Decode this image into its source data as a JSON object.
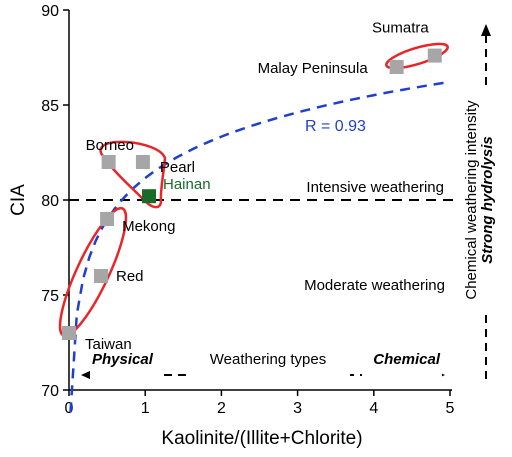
{
  "chart_data": {
    "type": "scatter",
    "title": "",
    "xlabel": "Kaolinite/(Illite+Chlorite)",
    "ylabel": "CIA",
    "xlim": [
      0,
      5
    ],
    "ylim": [
      70,
      90
    ],
    "xticks": [
      "0",
      "1",
      "2",
      "3",
      "4",
      "5"
    ],
    "yticks": [
      "70",
      "75",
      "80",
      "85",
      "90"
    ],
    "grid": false,
    "points": [
      {
        "label": "Taiwan",
        "x": 0.0,
        "y": 73.0,
        "color": "#a6a6a6"
      },
      {
        "label": "Red",
        "x": 0.42,
        "y": 76.0,
        "color": "#a6a6a6"
      },
      {
        "label": "Mekong",
        "x": 0.5,
        "y": 79.0,
        "color": "#a6a6a6"
      },
      {
        "label": "Borneo",
        "x": 0.52,
        "y": 82.0,
        "color": "#a6a6a6"
      },
      {
        "label": "Pearl",
        "x": 0.97,
        "y": 82.0,
        "color": "#a6a6a6"
      },
      {
        "label": "Hainan",
        "x": 1.05,
        "y": 80.2,
        "color": "#1a6b2a"
      },
      {
        "label": "Malay Peninsula",
        "x": 4.3,
        "y": 87.0,
        "color": "#a6a6a6"
      },
      {
        "label": "Sumatra",
        "x": 4.8,
        "y": 87.6,
        "color": "#a6a6a6"
      }
    ],
    "fit": {
      "label": "R = 0.93",
      "color": "#1f3fd0"
    },
    "threshold": {
      "y": 80,
      "upper_label": "Intensive weathering",
      "lower_label": "Moderate weathering"
    },
    "weathering_types": {
      "left": "Physical",
      "center": "Weathering types",
      "right": "Chemical"
    },
    "right_axis": {
      "label1": "Chemical weathering intensity",
      "label2": "Strong hydrolysis"
    },
    "colors": {
      "ellipse": "#e8262a",
      "fit": "#1f3fd0",
      "hainan": "#1a6b2a",
      "points": "#a6a6a6"
    }
  }
}
